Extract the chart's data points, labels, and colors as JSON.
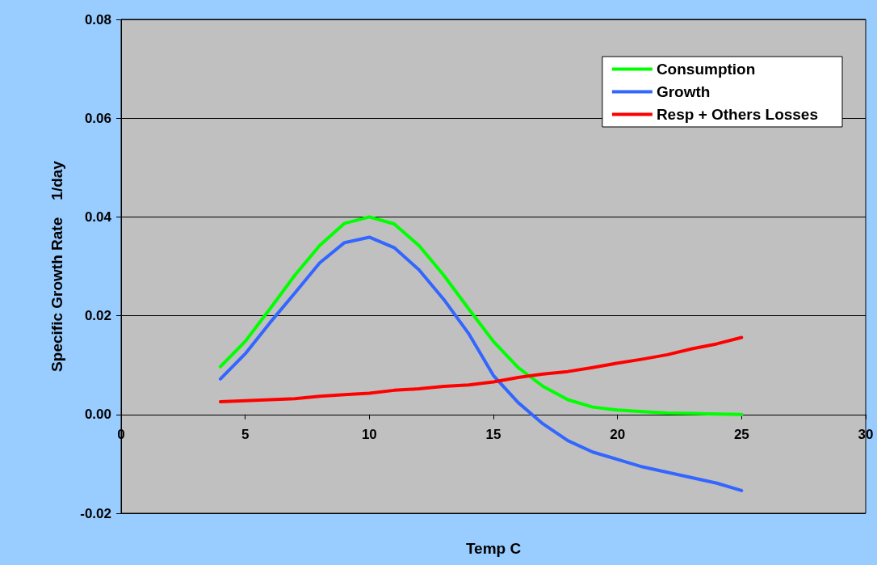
{
  "chart_data": {
    "type": "line",
    "xlabel": "Temp C",
    "ylabel": "Specific Growth Rate    1/day",
    "x": [
      4,
      5,
      6,
      7,
      8,
      9,
      10,
      11,
      12,
      13,
      14,
      15,
      16,
      17,
      18,
      19,
      20,
      21,
      22,
      23,
      24,
      25
    ],
    "series": [
      {
        "name": "Consumption",
        "color": "#00ff00",
        "values": [
          0.0097,
          0.0148,
          0.0214,
          0.0282,
          0.0342,
          0.0387,
          0.04,
          0.0386,
          0.0342,
          0.0282,
          0.0214,
          0.0148,
          0.0095,
          0.0057,
          0.003,
          0.0015,
          0.0009,
          0.0006,
          0.0003,
          0.0002,
          0.0001,
          0.0
        ]
      },
      {
        "name": "Growth",
        "color": "#3366ff",
        "values": [
          0.0072,
          0.0123,
          0.0186,
          0.0246,
          0.0307,
          0.0348,
          0.0359,
          0.0338,
          0.0293,
          0.0233,
          0.0164,
          0.0079,
          0.0024,
          -0.0019,
          -0.0053,
          -0.0076,
          -0.0091,
          -0.0106,
          -0.0117,
          -0.0128,
          -0.0139,
          -0.0154
        ]
      },
      {
        "name": "Resp + Others Losses",
        "color": "#ff0000",
        "values": [
          0.0026,
          0.0028,
          0.003,
          0.0032,
          0.0037,
          0.004,
          0.0043,
          0.0049,
          0.0052,
          0.0057,
          0.006,
          0.0066,
          0.0075,
          0.0082,
          0.0087,
          0.0095,
          0.0104,
          0.0112,
          0.0121,
          0.0133,
          0.0143,
          0.0156
        ]
      }
    ],
    "xlim": [
      0,
      30
    ],
    "xticks": [
      0,
      5,
      10,
      15,
      20,
      25,
      30
    ],
    "ylim": [
      -0.02,
      0.08
    ],
    "yticks": [
      {
        "value": -0.02,
        "label": "-0.02"
      },
      {
        "value": 0,
        "label": "0.00"
      },
      {
        "value": 0.02,
        "label": "0.02"
      },
      {
        "value": 0.04,
        "label": "0.04"
      },
      {
        "value": 0.06,
        "label": "0.06"
      },
      {
        "value": 0.08,
        "label": "0.08"
      }
    ],
    "grid": "y",
    "legend": "top right",
    "marker": "none"
  }
}
